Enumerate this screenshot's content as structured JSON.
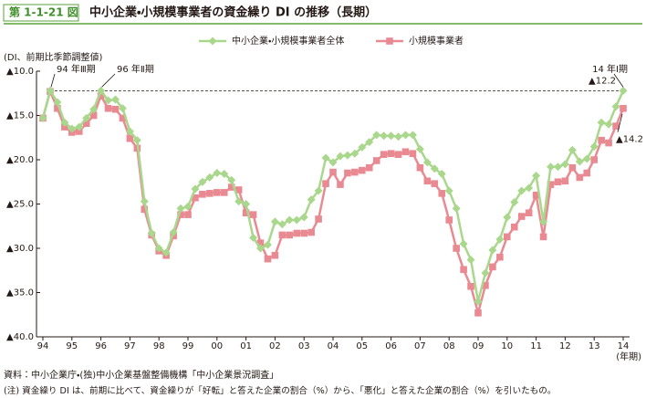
{
  "figure_number": "第 1-1-21 図",
  "source": "資料：中小企業庁・(独)中小企業基盤整備機構「中小企業景況調査」",
  "note": "(注) 資金繰り DI は、前期に比べて、資金繰りが「好転」と答えた企業の割合（%）から、「悪化」と答えた企業の割合（%）を引いたもの。",
  "chart_data": {
    "type": "line",
    "title": "中小企業・小規模事業者の資金繰り DI の推移（長期）",
    "y_axis_label": "(DI、前期比季節調整値)",
    "x_axis_label": "(年期)",
    "annotations": [
      "94 年Ⅲ期",
      "96 年Ⅱ期",
      "14 年Ⅰ期"
    ],
    "categories": [
      "94",
      null,
      null,
      null,
      "95",
      null,
      null,
      null,
      "96",
      null,
      null,
      null,
      "97",
      null,
      null,
      null,
      "98",
      null,
      null,
      null,
      "99",
      null,
      null,
      null,
      "00",
      null,
      null,
      null,
      "01",
      null,
      null,
      null,
      "02",
      null,
      null,
      null,
      "03",
      null,
      null,
      null,
      "04",
      null,
      null,
      null,
      "05",
      null,
      null,
      null,
      "06",
      null,
      null,
      null,
      "07",
      null,
      null,
      null,
      "08",
      null,
      null,
      null,
      "09",
      null,
      null,
      null,
      "10",
      null,
      null,
      null,
      "11",
      null,
      null,
      null,
      "12",
      null,
      null,
      null,
      "13",
      null,
      null,
      null,
      "14"
    ],
    "series": [
      {
        "name": "中小企業・小規模事業者全体",
        "color": "#a9d78c",
        "marker": "diamond",
        "values": [
          -15.3,
          -12.2,
          -13.5,
          -15.8,
          -16.5,
          -16.3,
          -15.3,
          -14.3,
          -12.2,
          -13.3,
          -13.2,
          -14.2,
          -16.8,
          -17.8,
          -24.7,
          -28.3,
          -30.0,
          -30.5,
          -28.2,
          -25.5,
          -25.3,
          -23.3,
          -22.5,
          -22.0,
          -21.5,
          -21.6,
          -22.3,
          -24.7,
          -25.0,
          -28.8,
          -30.0,
          -29.6,
          -27.0,
          -27.3,
          -26.8,
          -26.8,
          -26.5,
          -24.5,
          -23.5,
          -19.8,
          -20.3,
          -19.6,
          -19.5,
          -19.3,
          -18.6,
          -18.0,
          -17.2,
          -17.3,
          -17.3,
          -17.4,
          -17.2,
          -17.2,
          -18.8,
          -20.3,
          -21.0,
          -21.6,
          -23.5,
          -25.5,
          -29.5,
          -31.3,
          -36.0,
          -32.8,
          -30.2,
          -29.0,
          -26.5,
          -24.8,
          -23.5,
          -23.2,
          -21.8,
          -27.0,
          -20.8,
          -20.8,
          -20.5,
          -18.9,
          -20.2,
          -19.9,
          -18.5,
          -15.8,
          -16.0,
          -14.0,
          -12.2
        ],
        "value_labels": [
          null,
          null,
          null,
          null,
          null,
          null,
          null,
          null,
          null,
          null,
          null,
          null,
          null,
          null,
          null,
          null,
          null,
          null,
          null,
          null,
          null,
          null,
          null,
          null,
          null,
          null,
          null,
          null,
          null,
          null,
          null,
          null,
          null,
          null,
          null,
          null,
          null,
          null,
          null,
          null,
          null,
          null,
          null,
          null,
          null,
          null,
          null,
          null,
          null,
          null,
          null,
          null,
          null,
          null,
          null,
          null,
          null,
          null,
          null,
          null,
          null,
          null,
          null,
          null,
          null,
          null,
          null,
          null,
          null,
          null,
          null,
          null,
          null,
          null,
          null,
          null,
          null,
          null,
          null,
          null,
          "▲12.2"
        ]
      },
      {
        "name": "小規模事業者",
        "color": "#e98a93",
        "marker": "square",
        "values": [
          -15.3,
          -12.3,
          -14.2,
          -16.3,
          -16.9,
          -16.8,
          -15.9,
          -15.0,
          -12.8,
          -14.2,
          -14.3,
          -15.3,
          -17.6,
          -18.7,
          -25.6,
          -28.5,
          -30.3,
          -30.8,
          -28.6,
          -26.2,
          -26.2,
          -24.3,
          -23.9,
          -23.8,
          -23.7,
          -23.7,
          -23.1,
          -23.4,
          -26.0,
          -26.2,
          -29.4,
          -31.2,
          -30.8,
          -28.5,
          -28.5,
          -28.3,
          -28.3,
          -28.2,
          -26.7,
          -22.7,
          -21.4,
          -22.8,
          -21.5,
          -21.4,
          -21.2,
          -20.9,
          -20.1,
          -19.4,
          -19.3,
          -19.4,
          -19.1,
          -19.3,
          -20.9,
          -22.4,
          -22.7,
          -23.8,
          -26.8,
          -30.0,
          -32.4,
          -34.3,
          -37.3,
          -34.2,
          -32.1,
          -31.0,
          -28.7,
          -27.6,
          -26.4,
          -26.0,
          -24.0,
          -28.7,
          -22.8,
          -22.5,
          -22.4,
          -20.9,
          -22.0,
          -21.5,
          -20.0,
          -17.8,
          -18.1,
          -16.2,
          -14.2
        ],
        "value_labels": [
          null,
          null,
          null,
          null,
          null,
          null,
          null,
          null,
          null,
          null,
          null,
          null,
          null,
          null,
          null,
          null,
          null,
          null,
          null,
          null,
          null,
          null,
          null,
          null,
          null,
          null,
          null,
          null,
          null,
          null,
          null,
          null,
          null,
          null,
          null,
          null,
          null,
          null,
          null,
          null,
          null,
          null,
          null,
          null,
          null,
          null,
          null,
          null,
          null,
          null,
          null,
          null,
          null,
          null,
          null,
          null,
          null,
          null,
          null,
          null,
          null,
          null,
          null,
          null,
          null,
          null,
          null,
          null,
          null,
          null,
          null,
          null,
          null,
          null,
          null,
          null,
          null,
          null,
          null,
          null,
          "▲14.2"
        ]
      }
    ],
    "ylim": [
      -10,
      -40
    ],
    "yticks": [
      {
        "value": -10,
        "label": "▲10.0"
      },
      {
        "value": -15,
        "label": "▲15.0"
      },
      {
        "value": -20,
        "label": "▲20.0"
      },
      {
        "value": -25,
        "label": "▲25.0"
      },
      {
        "value": -30,
        "label": "▲30.0"
      },
      {
        "value": -35,
        "label": "▲35.0"
      },
      {
        "value": -40,
        "label": "▲40.0"
      }
    ],
    "grid": false,
    "legend": "top"
  }
}
